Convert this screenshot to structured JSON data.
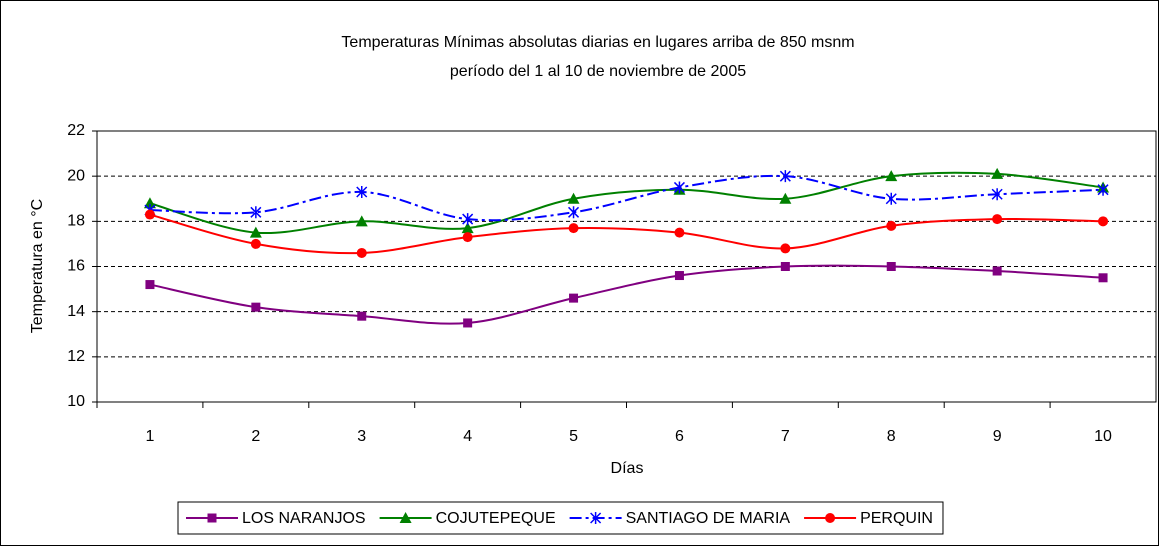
{
  "chart_data": {
    "type": "line",
    "title": "Temperaturas Mínimas absolutas diarias en lugares arriba de 850 msnm",
    "subtitle": "período del 1 al 10 de noviembre de 2005",
    "x_label": "Días",
    "y_label": "Temperatura en °C",
    "categories": [
      "1",
      "2",
      "3",
      "4",
      "5",
      "6",
      "7",
      "8",
      "9",
      "10"
    ],
    "series": [
      {
        "name": "LOS NARANJOS",
        "color": "#800080",
        "marker": "square",
        "dash": "solid",
        "values": [
          15.2,
          14.2,
          13.8,
          13.5,
          14.6,
          15.6,
          16.0,
          16.0,
          15.8,
          15.5
        ]
      },
      {
        "name": "COJUTEPEQUE",
        "color": "#008000",
        "marker": "triangle",
        "dash": "solid",
        "values": [
          18.8,
          17.5,
          18.0,
          17.7,
          19.0,
          19.4,
          19.0,
          20.0,
          20.1,
          19.5
        ]
      },
      {
        "name": "SANTIAGO DE MARIA",
        "color": "#0000ff",
        "marker": "star",
        "dash": "dashdot",
        "values": [
          18.5,
          18.4,
          19.3,
          18.1,
          18.4,
          19.5,
          20.0,
          19.0,
          19.2,
          19.4
        ]
      },
      {
        "name": "PERQUIN",
        "color": "#ff0000",
        "marker": "circle",
        "dash": "solid",
        "values": [
          18.3,
          17.0,
          16.6,
          17.3,
          17.7,
          17.5,
          16.8,
          17.8,
          18.1,
          18.0
        ]
      }
    ],
    "ylim": [
      10,
      22
    ],
    "yticks": [
      10,
      12,
      14,
      16,
      18,
      20,
      22
    ],
    "grid": true,
    "legend": "bottom"
  }
}
